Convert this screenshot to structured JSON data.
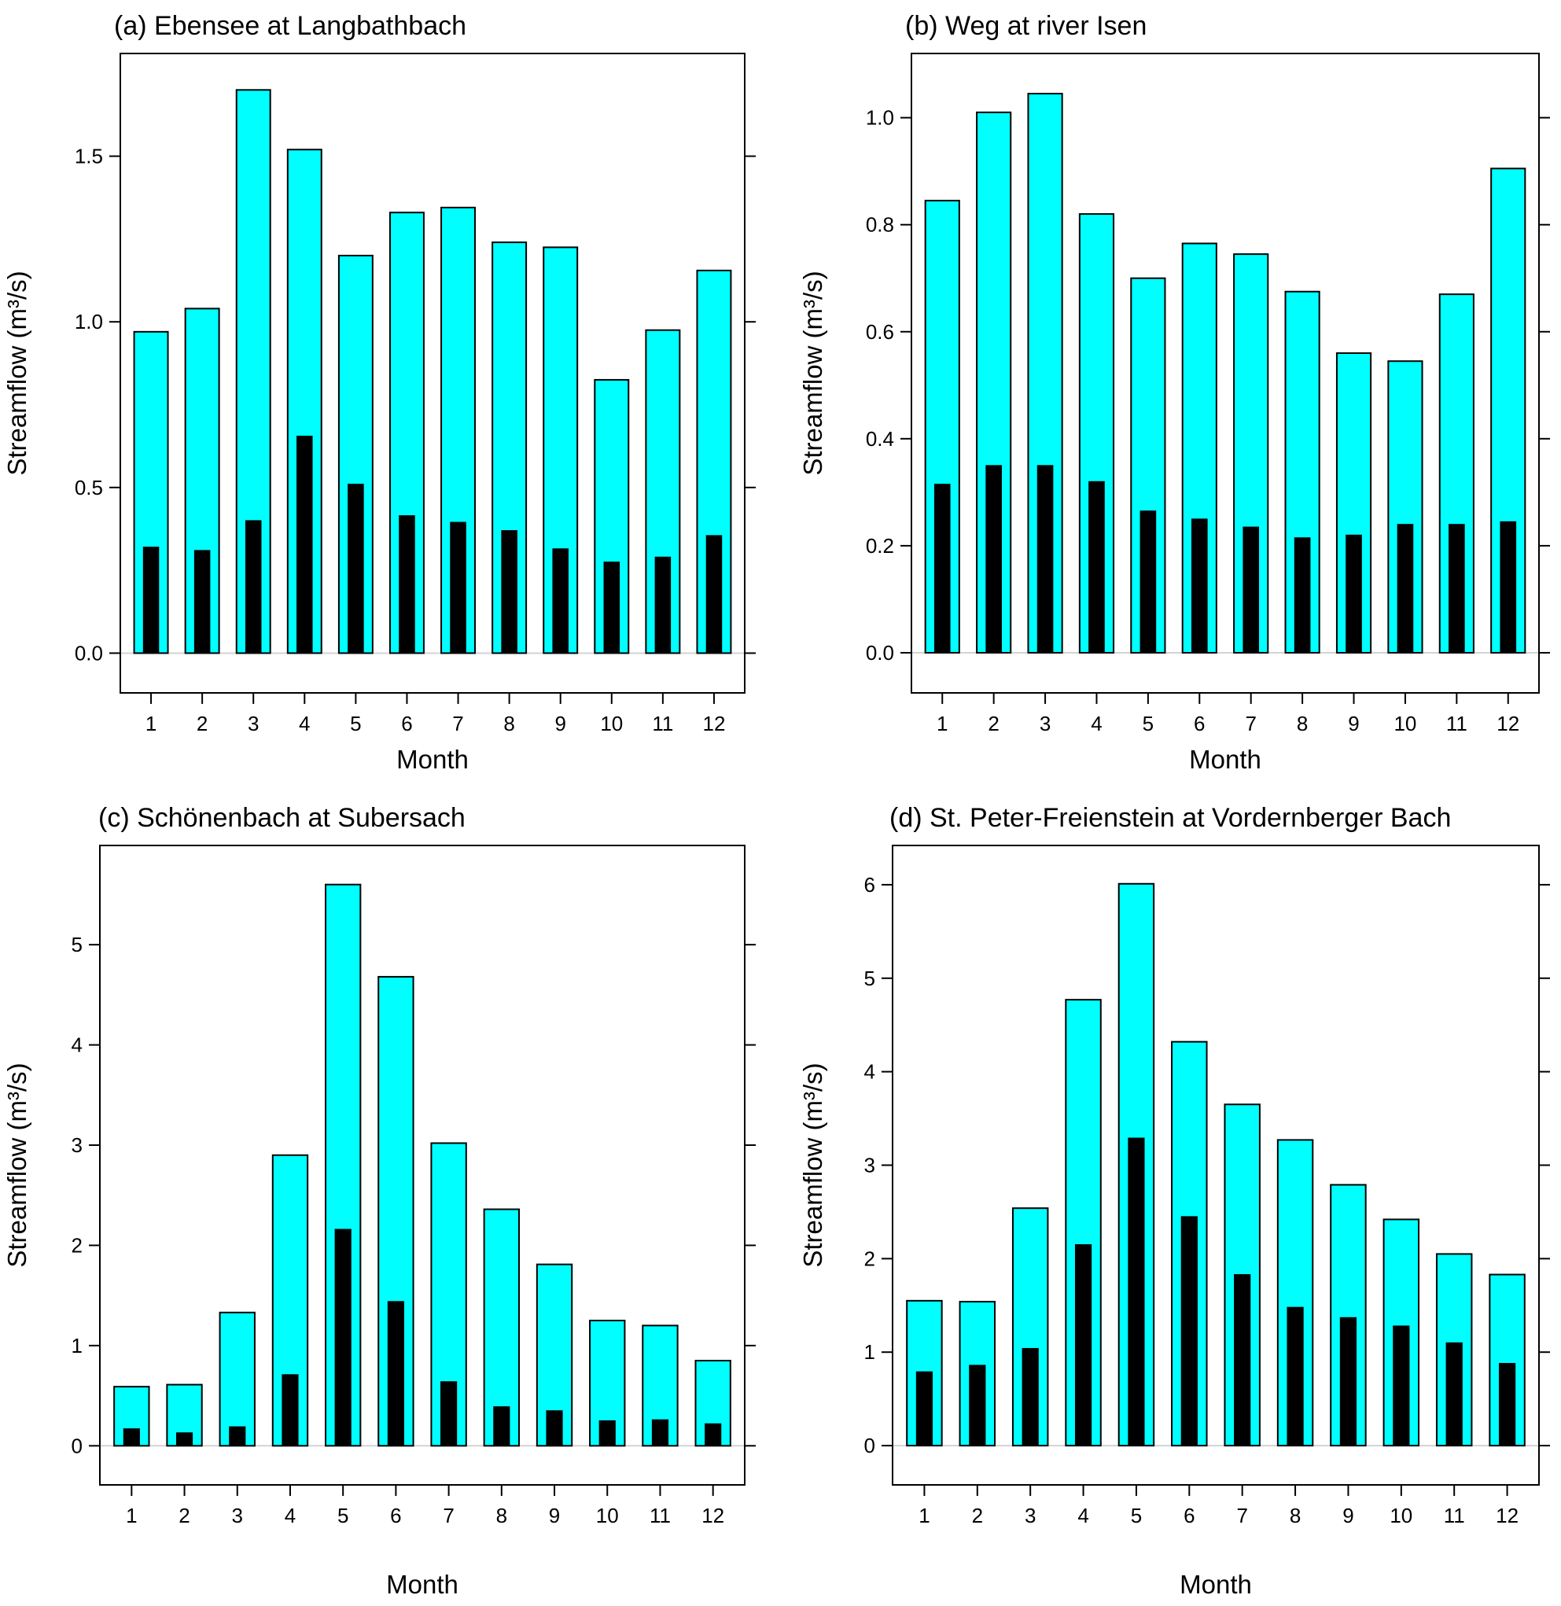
{
  "figure": {
    "description_hidden": false
  },
  "colors": {
    "outer_bar": "#00ffff",
    "inner_bar": "#000000",
    "baseline": "#d3d3d3",
    "frame": "#000000"
  },
  "chart_data": [
    {
      "type": "bar",
      "title": "(a) Ebensee at Langbathbach",
      "xlabel": "Month",
      "ylabel": "Streamflow (m³/s)",
      "categories": [
        "1",
        "2",
        "3",
        "4",
        "5",
        "6",
        "7",
        "8",
        "9",
        "10",
        "11",
        "12"
      ],
      "series": [
        {
          "name": "outer",
          "color": "#00ffff",
          "values": [
            0.97,
            1.04,
            1.7,
            1.52,
            1.2,
            1.33,
            1.345,
            1.24,
            1.225,
            0.825,
            0.975,
            1.155
          ]
        },
        {
          "name": "inner",
          "color": "#000000",
          "values": [
            0.32,
            0.31,
            0.4,
            0.655,
            0.51,
            0.415,
            0.395,
            0.37,
            0.315,
            0.275,
            0.29,
            0.355
          ]
        }
      ],
      "ylim": [
        -0.12,
        1.81
      ],
      "yticks": [
        0.0,
        0.5,
        1.0,
        1.5
      ],
      "ytick_labels": [
        "0.0",
        "0.5",
        "1.0",
        "1.5"
      ]
    },
    {
      "type": "bar",
      "title": "(b) Weg at river Isen",
      "xlabel": "Month",
      "ylabel": "Streamflow (m³/s)",
      "categories": [
        "1",
        "2",
        "3",
        "4",
        "5",
        "6",
        "7",
        "8",
        "9",
        "10",
        "11",
        "12"
      ],
      "series": [
        {
          "name": "outer",
          "color": "#00ffff",
          "values": [
            0.845,
            1.01,
            1.045,
            0.82,
            0.7,
            0.765,
            0.745,
            0.675,
            0.56,
            0.545,
            0.67,
            0.905
          ]
        },
        {
          "name": "inner",
          "color": "#000000",
          "values": [
            0.315,
            0.35,
            0.35,
            0.32,
            0.265,
            0.25,
            0.235,
            0.215,
            0.22,
            0.24,
            0.24,
            0.245
          ]
        }
      ],
      "ylim": [
        -0.075,
        1.12
      ],
      "yticks": [
        0.0,
        0.2,
        0.4,
        0.6,
        0.8,
        1.0
      ],
      "ytick_labels": [
        "0.0",
        "0.2",
        "0.4",
        "0.6",
        "0.8",
        "1.0"
      ]
    },
    {
      "type": "bar",
      "title": "(c) Schönenbach at Subersach",
      "xlabel": "Month",
      "ylabel": "Streamflow (m³/s)",
      "categories": [
        "1",
        "2",
        "3",
        "4",
        "5",
        "6",
        "7",
        "8",
        "9",
        "10",
        "11",
        "12"
      ],
      "series": [
        {
          "name": "outer",
          "color": "#00ffff",
          "values": [
            0.59,
            0.61,
            1.33,
            2.9,
            5.6,
            4.68,
            3.02,
            2.36,
            1.81,
            1.25,
            1.2,
            0.85
          ]
        },
        {
          "name": "inner",
          "color": "#000000",
          "values": [
            0.17,
            0.13,
            0.19,
            0.71,
            2.16,
            1.44,
            0.64,
            0.39,
            0.35,
            0.25,
            0.26,
            0.22
          ]
        }
      ],
      "ylim": [
        -0.39,
        5.99
      ],
      "yticks": [
        0,
        1,
        2,
        3,
        4,
        5
      ],
      "ytick_labels": [
        "0",
        "1",
        "2",
        "3",
        "4",
        "5"
      ]
    },
    {
      "type": "bar",
      "title": "(d) St. Peter-Freienstein at Vordernberger Bach",
      "xlabel": "Month",
      "ylabel": "Streamflow (m³/s)",
      "categories": [
        "1",
        "2",
        "3",
        "4",
        "5",
        "6",
        "7",
        "8",
        "9",
        "10",
        "11",
        "12"
      ],
      "series": [
        {
          "name": "outer",
          "color": "#00ffff",
          "values": [
            1.55,
            1.54,
            2.54,
            4.77,
            6.01,
            4.32,
            3.65,
            3.27,
            2.79,
            2.42,
            2.05,
            1.83
          ]
        },
        {
          "name": "inner",
          "color": "#000000",
          "values": [
            0.79,
            0.86,
            1.04,
            2.15,
            3.29,
            2.45,
            1.83,
            1.48,
            1.37,
            1.28,
            1.1,
            0.88
          ]
        }
      ],
      "ylim": [
        -0.42,
        6.42
      ],
      "yticks": [
        0,
        1,
        2,
        3,
        4,
        5,
        6
      ],
      "ytick_labels": [
        "0",
        "1",
        "2",
        "3",
        "4",
        "5",
        "6"
      ]
    }
  ]
}
